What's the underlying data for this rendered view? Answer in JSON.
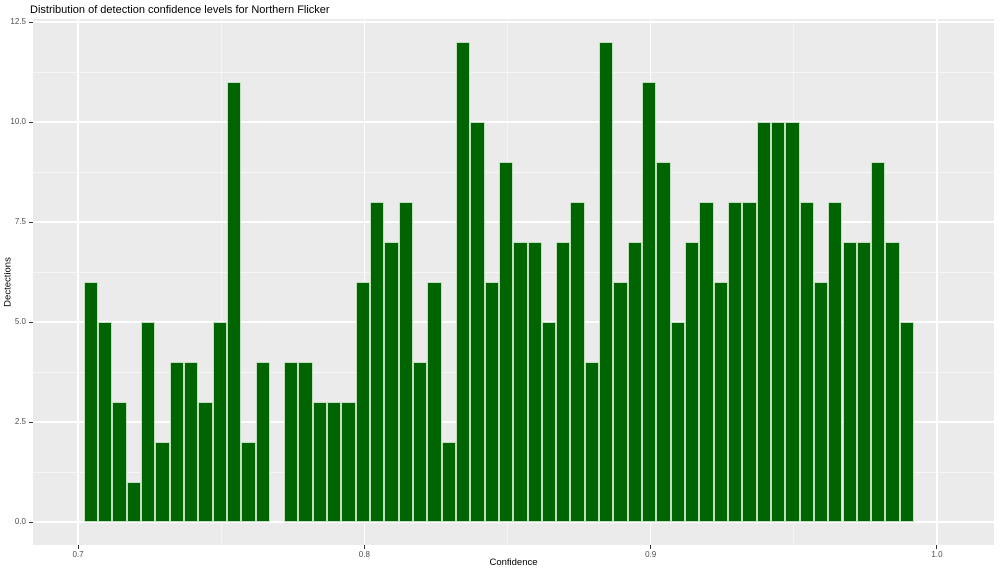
{
  "colors": {
    "bar_fill": "#006400",
    "bar_border": "#c2dfc2",
    "panel_background": "#ebebeb",
    "grid_major": "#ffffff",
    "tick_text": "#4d4d4d",
    "tick_mark": "#333333",
    "title_text": "#000000"
  },
  "chart_data": {
    "type": "bar",
    "subtype": "histogram",
    "title": "Distribution of detection confidence levels for Northern Flicker",
    "xlabel": "Confidence",
    "ylabel": "Dectections",
    "bin_start": 0.702,
    "bin_width": 0.005,
    "counts": [
      6,
      5,
      3,
      1,
      5,
      2,
      4,
      4,
      3,
      5,
      11,
      2,
      4,
      0,
      4,
      4,
      3,
      3,
      3,
      6,
      8,
      7,
      8,
      4,
      6,
      2,
      12,
      10,
      6,
      9,
      7,
      7,
      5,
      7,
      8,
      4,
      12,
      6,
      7,
      11,
      9,
      5,
      7,
      8,
      6,
      8,
      8,
      10,
      10,
      10,
      8,
      6,
      8,
      7,
      7,
      9,
      7,
      5
    ],
    "x_axis": {
      "tick_labels": [
        "0.7",
        "0.8",
        "0.9",
        "1.0"
      ],
      "tick_values": [
        0.7,
        0.8,
        0.9,
        1.0
      ],
      "minor_values": [
        0.75,
        0.85,
        0.95
      ]
    },
    "y_axis": {
      "tick_labels": [
        "0.0",
        "2.5",
        "5.0",
        "7.5",
        "10.0",
        "12.5"
      ],
      "tick_values": [
        0,
        2.5,
        5,
        7.5,
        10,
        12.5
      ],
      "minor_values": [
        1.25,
        3.75,
        6.25,
        8.75,
        11.25
      ]
    },
    "xlim": [
      0.684,
      1.02
    ],
    "ylim": [
      0,
      12.5
    ],
    "grid": "major+minor",
    "legend": false
  }
}
